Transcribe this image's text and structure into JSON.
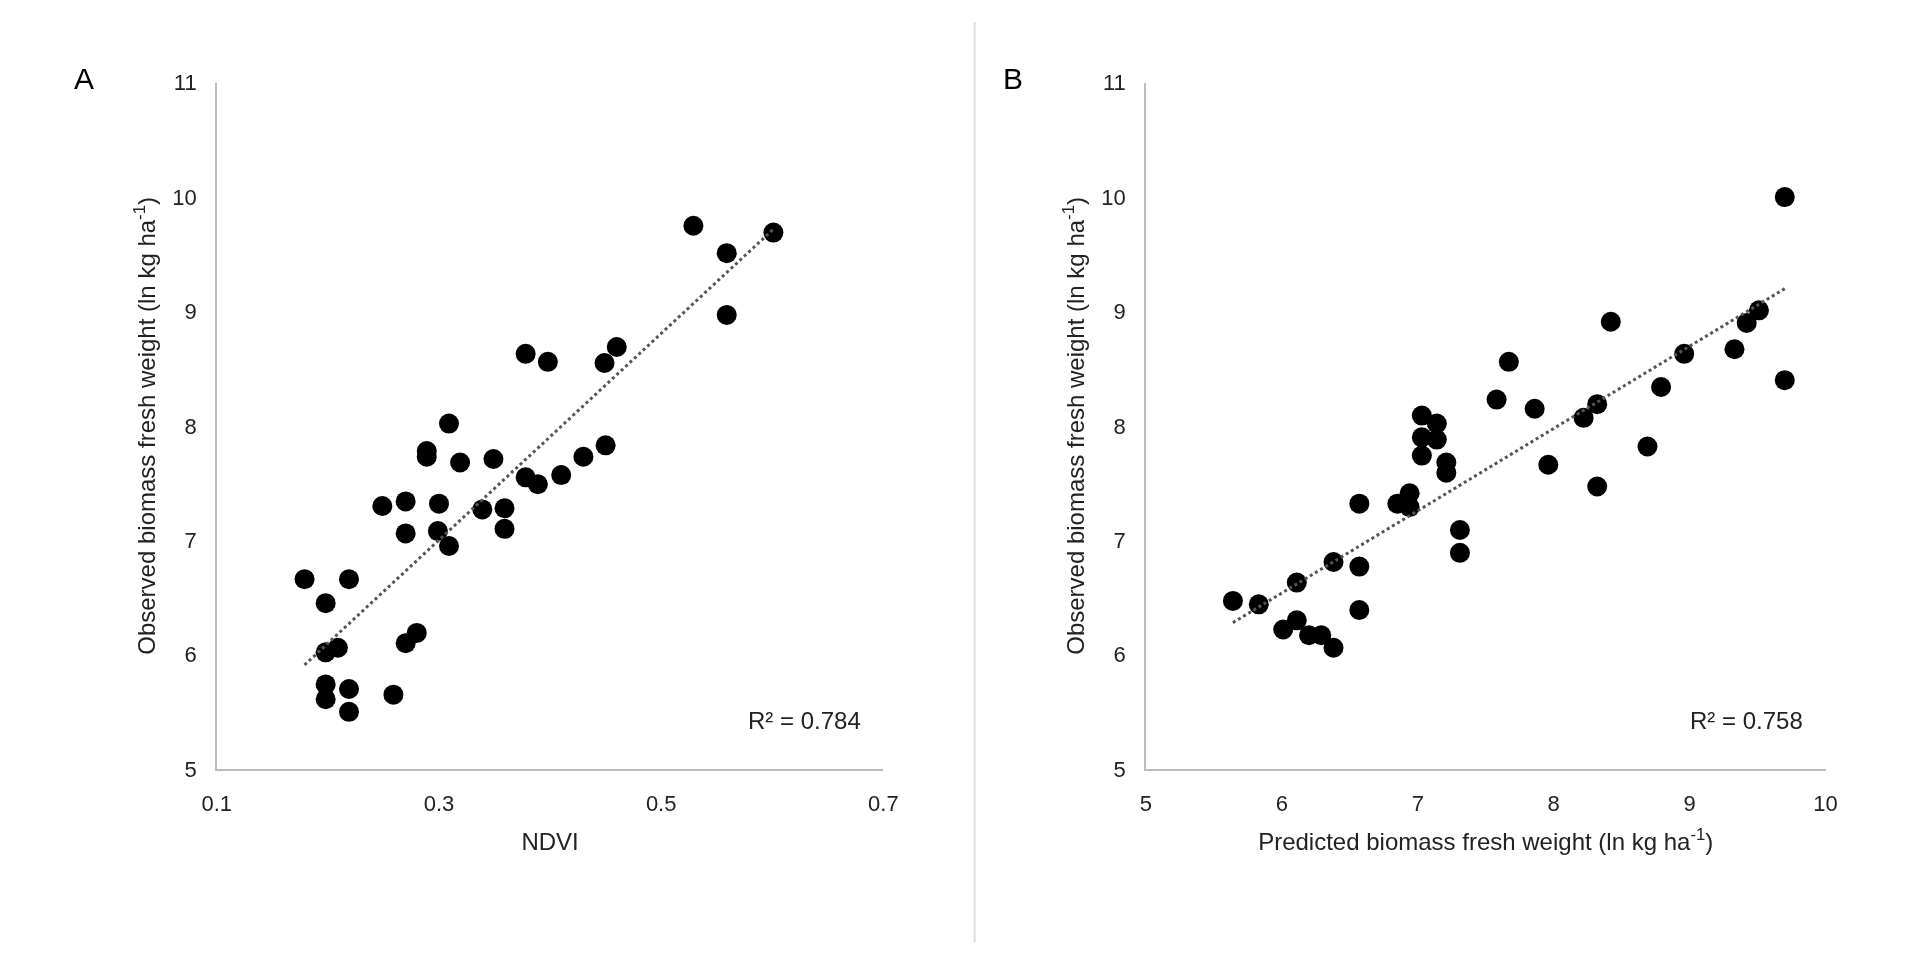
{
  "chart_data": [
    {
      "type": "scatter",
      "title": "A",
      "xlabel": "NDVI",
      "ylabel": "Observed biomass fresh weight (ln kg ha$^{-1}$)",
      "xlim": [
        0.1,
        0.7
      ],
      "xticks": [
        0.1,
        0.3,
        0.5,
        0.7
      ],
      "ylim": [
        5,
        11
      ],
      "yticks": [
        5,
        6,
        7,
        8,
        9,
        10,
        11
      ],
      "marker": "circle",
      "annotations": [
        "R² = 0.784"
      ],
      "series": [
        {
          "color": "#000000",
          "x": [
            0.529,
            0.601,
            0.559,
            0.559,
            0.378,
            0.398,
            0.46,
            0.449,
            0.309,
            0.289,
            0.289,
            0.319,
            0.349,
            0.45,
            0.43,
            0.41,
            0.378,
            0.389,
            0.249,
            0.27,
            0.3,
            0.339,
            0.359,
            0.359,
            0.27,
            0.299,
            0.309,
            0.179,
            0.219,
            0.198,
            0.198,
            0.209,
            0.27,
            0.28,
            0.198,
            0.198,
            0.219,
            0.219,
            0.259
          ],
          "values": [
            9.75,
            9.69,
            9.51,
            8.97,
            8.63,
            8.56,
            8.69,
            8.55,
            8.02,
            7.78,
            7.73,
            7.68,
            7.71,
            7.83,
            7.73,
            7.57,
            7.55,
            7.49,
            7.3,
            7.34,
            7.32,
            7.27,
            7.28,
            7.1,
            7.06,
            7.08,
            6.95,
            6.66,
            6.66,
            6.45,
            6.02,
            6.06,
            6.1,
            6.19,
            5.74,
            5.61,
            5.7,
            5.5,
            5.65
          ]
        },
        {
          "type": "line",
          "line_style": "dotted",
          "marker": "none",
          "color": "#555555",
          "x": [
            0.179,
            0.601
          ],
          "values": [
            5.91,
            9.72
          ]
        }
      ]
    },
    {
      "type": "scatter",
      "title": "B",
      "xlabel": "Predicted biomass fresh weight (ln kg ha$^{-1}$)",
      "ylabel": "Observed biomass fresh weight (ln kg ha$^{-1}$)",
      "xlim": [
        5,
        10
      ],
      "xticks": [
        5,
        6,
        7,
        8,
        9,
        10
      ],
      "ylim": [
        5,
        11
      ],
      "yticks": [
        5,
        6,
        7,
        8,
        9,
        10,
        11
      ],
      "marker": "circle",
      "annotations": [
        "R² = 0.758"
      ],
      "series": [
        {
          "color": "#000000",
          "x": [
            9.7,
            8.42,
            9.51,
            9.42,
            8.96,
            9.33,
            9.7,
            8.79,
            7.67,
            7.58,
            7.86,
            8.32,
            8.22,
            8.69,
            7.96,
            8.32,
            7.03,
            7.14,
            7.03,
            7.14,
            7.03,
            7.21,
            7.21,
            6.94,
            6.85,
            6.94,
            6.57,
            7.31,
            7.31,
            6.38,
            6.57,
            6.11,
            6.57,
            5.64,
            5.83,
            6.11,
            6.01,
            6.2,
            6.29,
            6.38
          ],
          "values": [
            10.0,
            8.91,
            9.01,
            8.9,
            8.63,
            8.67,
            8.4,
            8.34,
            8.56,
            8.23,
            8.15,
            8.19,
            8.07,
            7.82,
            7.66,
            7.47,
            8.09,
            8.02,
            7.9,
            7.88,
            7.74,
            7.68,
            7.59,
            7.41,
            7.32,
            7.29,
            7.32,
            7.09,
            6.89,
            6.81,
            6.77,
            6.63,
            6.39,
            6.47,
            6.44,
            6.3,
            6.22,
            6.17,
            6.17,
            6.06
          ]
        },
        {
          "type": "line",
          "line_style": "dotted",
          "marker": "none",
          "color": "#555555",
          "x": [
            5.64,
            9.7
          ],
          "values": [
            6.28,
            9.2
          ]
        }
      ]
    }
  ]
}
